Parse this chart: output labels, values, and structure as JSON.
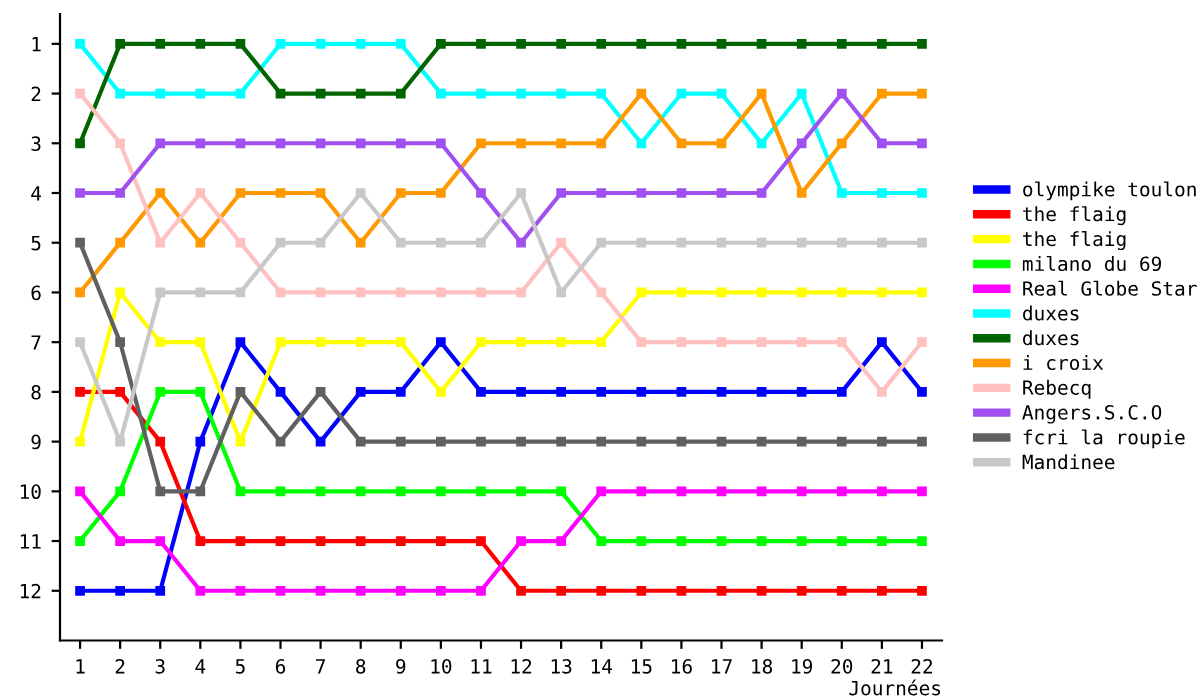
{
  "chart_data": {
    "type": "line",
    "xlabel": "Journées",
    "x": [
      1,
      2,
      3,
      4,
      5,
      6,
      7,
      8,
      9,
      10,
      11,
      12,
      13,
      14,
      15,
      16,
      17,
      18,
      19,
      20,
      21,
      22
    ],
    "xlim": [
      0.5,
      22.5
    ],
    "xticks": [
      1,
      2,
      3,
      4,
      5,
      6,
      7,
      8,
      9,
      10,
      11,
      12,
      13,
      14,
      15,
      16,
      17,
      18,
      19,
      20,
      21,
      22
    ],
    "ylim": [
      13,
      0.4
    ],
    "yticks": [
      1,
      2,
      3,
      4,
      5,
      6,
      7,
      8,
      9,
      10,
      11,
      12
    ],
    "grid": false,
    "legend": "right",
    "marker": "square",
    "line_style": "solid",
    "series": [
      {
        "name": "olympike toulon",
        "color": "#0000ff",
        "values": [
          12,
          12,
          12,
          9,
          7,
          8,
          9,
          8,
          8,
          7,
          8,
          8,
          8,
          8,
          8,
          8,
          8,
          8,
          8,
          8,
          7,
          8
        ]
      },
      {
        "name": "the flaig",
        "color": "#ff0000",
        "values": [
          8,
          8,
          9,
          11,
          11,
          11,
          11,
          11,
          11,
          11,
          11,
          12,
          12,
          12,
          12,
          12,
          12,
          12,
          12,
          12,
          12,
          12
        ]
      },
      {
        "name": "the flaig",
        "color": "#ffff00",
        "values": [
          9,
          6,
          7,
          7,
          9,
          7,
          7,
          7,
          7,
          8,
          7,
          7,
          7,
          7,
          6,
          6,
          6,
          6,
          6,
          6,
          6,
          6
        ]
      },
      {
        "name": "milano du 69",
        "color": "#00ff00",
        "values": [
          11,
          10,
          8,
          8,
          10,
          10,
          10,
          10,
          10,
          10,
          10,
          10,
          10,
          11,
          11,
          11,
          11,
          11,
          11,
          11,
          11,
          11
        ]
      },
      {
        "name": "Real Globe Star",
        "color": "#ff00ff",
        "values": [
          10,
          11,
          11,
          12,
          12,
          12,
          12,
          12,
          12,
          12,
          12,
          11,
          11,
          10,
          10,
          10,
          10,
          10,
          10,
          10,
          10,
          10
        ]
      },
      {
        "name": "duxes",
        "color": "#00ffff",
        "values": [
          1,
          2,
          2,
          2,
          2,
          1,
          1,
          1,
          1,
          2,
          2,
          2,
          2,
          2,
          3,
          2,
          2,
          3,
          2,
          4,
          4,
          4
        ]
      },
      {
        "name": "duxes",
        "color": "#006400",
        "values": [
          3,
          1,
          1,
          1,
          1,
          2,
          2,
          2,
          2,
          1,
          1,
          1,
          1,
          1,
          1,
          1,
          1,
          1,
          1,
          1,
          1,
          1
        ]
      },
      {
        "name": "i croix",
        "color": "#ff9900",
        "values": [
          6,
          5,
          4,
          5,
          4,
          4,
          4,
          5,
          4,
          4,
          3,
          3,
          3,
          3,
          2,
          3,
          3,
          2,
          4,
          3,
          2,
          2
        ]
      },
      {
        "name": "Rebecq",
        "color": "#ffc0c0",
        "values": [
          2,
          3,
          5,
          4,
          5,
          6,
          6,
          6,
          6,
          6,
          6,
          6,
          5,
          6,
          7,
          7,
          7,
          7,
          7,
          7,
          8,
          7
        ]
      },
      {
        "name": "Angers.S.C.O",
        "color": "#a050f0",
        "values": [
          4,
          4,
          3,
          3,
          3,
          3,
          3,
          3,
          3,
          3,
          4,
          5,
          4,
          4,
          4,
          4,
          4,
          4,
          3,
          2,
          3,
          3
        ]
      },
      {
        "name": "fcri la roupie",
        "color": "#606060",
        "values": [
          5,
          7,
          10,
          10,
          8,
          9,
          8,
          9,
          9,
          9,
          9,
          9,
          9,
          9,
          9,
          9,
          9,
          9,
          9,
          9,
          9,
          9
        ]
      },
      {
        "name": "Mandinee",
        "color": "#c8c8c8",
        "values": [
          7,
          9,
          6,
          6,
          6,
          5,
          5,
          4,
          5,
          5,
          5,
          4,
          6,
          5,
          5,
          5,
          5,
          5,
          5,
          5,
          5,
          5
        ]
      }
    ]
  }
}
